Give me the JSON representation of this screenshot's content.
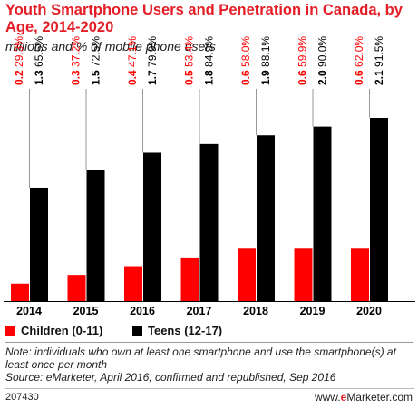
{
  "title": "Youth Smartphone Users and Penetration in Canada, by Age, 2014-2020",
  "subtitle": "millions and % of mobile phone users",
  "colors": {
    "children": "#ff0000",
    "teens": "#000000",
    "title": "#e41e26"
  },
  "chart_data": {
    "type": "bar",
    "categories": [
      "2014",
      "2015",
      "2016",
      "2017",
      "2018",
      "2019",
      "2020"
    ],
    "series": [
      {
        "name": "Children (0-11)",
        "values": [
          0.2,
          0.3,
          0.4,
          0.5,
          0.6,
          0.6,
          0.6
        ],
        "value_labels": [
          "0.2",
          "0.3",
          "0.4",
          "0.5",
          "0.6",
          "0.6",
          "0.6"
        ],
        "penetration_labels": [
          "29.3%",
          "37.2%",
          "47.1%",
          "53.4%",
          "58.0%",
          "59.9%",
          "62.0%"
        ]
      },
      {
        "name": "Teens (12-17)",
        "values": [
          1.3,
          1.5,
          1.7,
          1.8,
          1.9,
          2.0,
          2.1
        ],
        "value_labels": [
          "1.3",
          "1.5",
          "1.7",
          "1.8",
          "1.9",
          "2.0",
          "2.1"
        ],
        "penetration_labels": [
          "65.5%",
          "72.5%",
          "79.9%",
          "84.9%",
          "88.1%",
          "90.0%",
          "91.5%"
        ]
      }
    ],
    "xlabel": "",
    "ylabel": "",
    "ylim": [
      0,
      2.4
    ],
    "grid": false,
    "legend_position": "bottom-left"
  },
  "legend": {
    "children": "Children (0-11)",
    "teens": "Teens (12-17)"
  },
  "note": "Note: individuals who own at least one smartphone and use the smartphone(s) at least once per month",
  "source": "Source: eMarketer, April 2016; confirmed and republished, Sep 2016",
  "footer": {
    "id": "207430",
    "brand_prefix": "www.",
    "brand_e": "e",
    "brand_rest": "Marketer.com"
  }
}
